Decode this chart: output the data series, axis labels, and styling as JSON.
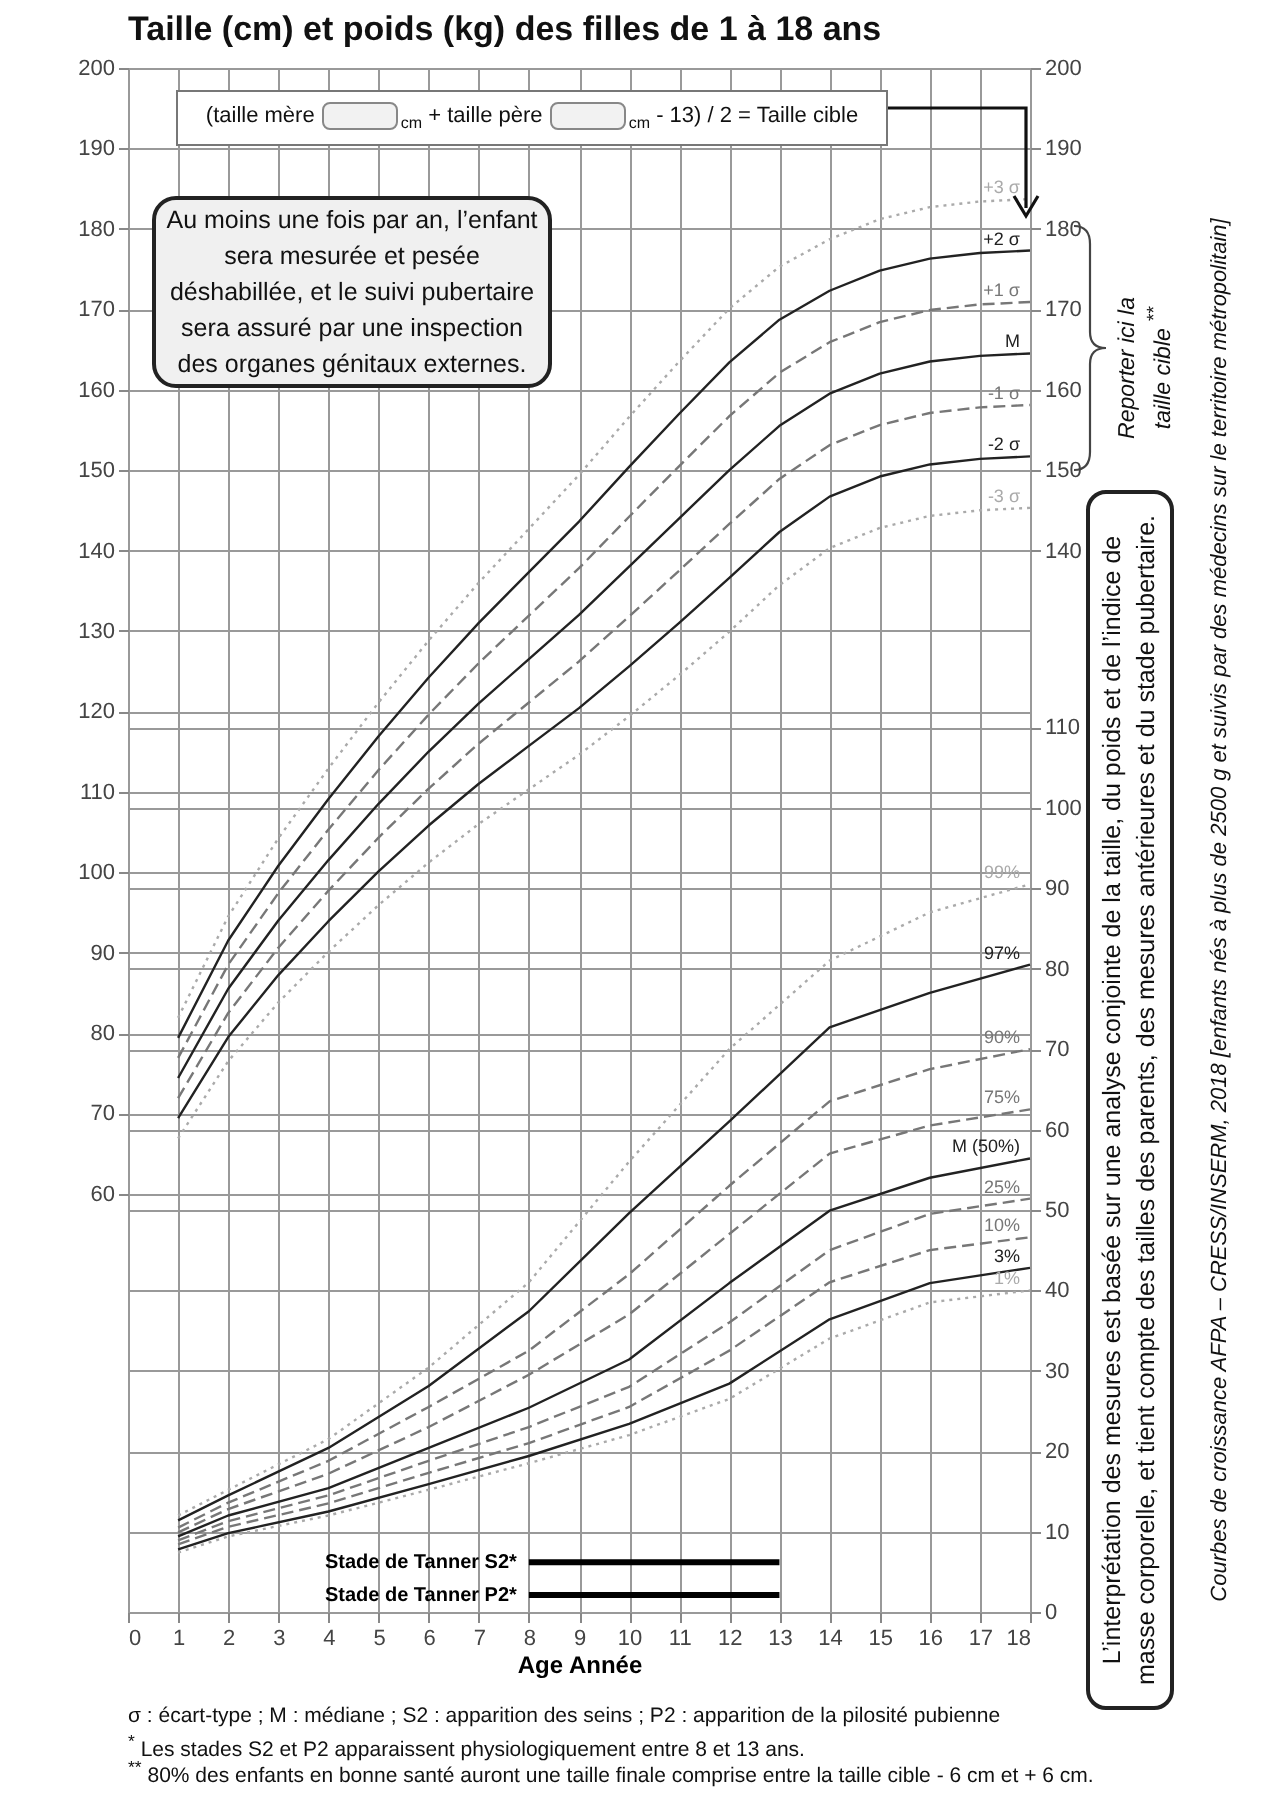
{
  "chart_data": {
    "type": "line",
    "title": "Taille (cm) et poids (kg) des filles de 1 à 18 ans",
    "xlabel": "Age   Année",
    "x": [
      1,
      2,
      3,
      4,
      5,
      6,
      7,
      8,
      9,
      10,
      11,
      12,
      13,
      14,
      15,
      16,
      17,
      18
    ],
    "xlim": [
      0,
      18
    ],
    "xticks": [
      0,
      1,
      2,
      3,
      4,
      5,
      6,
      7,
      8,
      9,
      10,
      11,
      12,
      13,
      14,
      15,
      16,
      17,
      18
    ],
    "ylim": [
      8,
      200
    ],
    "yticks": [
      60,
      70,
      80,
      90,
      100,
      110,
      120,
      130,
      140,
      150,
      160,
      170,
      180,
      190,
      200
    ],
    "y2lim": [
      0,
      192
    ],
    "y2ticks": [
      0,
      10,
      20,
      30,
      40,
      50,
      60,
      70,
      80,
      90,
      100,
      110
    ],
    "y3lim": [
      8,
      200
    ],
    "y3ticks": [
      140,
      150,
      160,
      170,
      180,
      190,
      200
    ],
    "grid": true,
    "series": [
      {
        "name": "+3 σ",
        "color": "#aaaaaa",
        "line_style": "dotted",
        "values": [
          81.9,
          94.5,
          104.2,
          112.9,
          121.1,
          128.8,
          136,
          142.7,
          149.4,
          156.6,
          163.5,
          170.1,
          175.3,
          178.7,
          181.2,
          182.7,
          183.4,
          183.7
        ]
      },
      {
        "name": "+2 σ",
        "color": "#222222",
        "line_style": "solid",
        "values": [
          79.4,
          91.5,
          100.8,
          109.1,
          116.9,
          124.2,
          131,
          137.3,
          143.6,
          150.4,
          157,
          163.4,
          168.7,
          172.3,
          174.8,
          176.3,
          177,
          177.3
        ]
      },
      {
        "name": "+1 σ",
        "color": "#777777",
        "line_style": "dashed",
        "values": [
          76.9,
          88.5,
          97.4,
          105.3,
          112.7,
          119.6,
          126,
          131.9,
          137.8,
          144.2,
          150.5,
          156.7,
          162.1,
          165.9,
          168.4,
          169.9,
          170.6,
          170.9
        ]
      },
      {
        "name": "M",
        "color": "#222222",
        "line_style": "solid",
        "values": [
          74.4,
          85.5,
          94,
          101.5,
          108.5,
          115,
          121,
          126.5,
          132,
          138,
          144,
          150,
          155.5,
          159.5,
          162,
          163.5,
          164.2,
          164.5
        ]
      },
      {
        "name": "-1 σ",
        "color": "#777777",
        "line_style": "dashed",
        "values": [
          71.9,
          82.5,
          90.6,
          97.7,
          104.3,
          110.4,
          116,
          121.1,
          126.2,
          131.8,
          137.5,
          143.3,
          148.9,
          153.1,
          155.6,
          157.1,
          157.8,
          158.1
        ]
      },
      {
        "name": "-2 σ",
        "color": "#222222",
        "line_style": "solid",
        "values": [
          69.4,
          79.5,
          87.2,
          93.9,
          100.1,
          105.8,
          111,
          115.7,
          120.4,
          125.6,
          131,
          136.6,
          142.3,
          146.7,
          149.2,
          150.7,
          151.4,
          151.7
        ]
      },
      {
        "name": "-3 σ",
        "color": "#aaaaaa",
        "line_style": "dotted",
        "values": [
          66.9,
          76.5,
          83.8,
          90.1,
          95.9,
          101.2,
          106,
          110.3,
          114.6,
          119.4,
          124.5,
          129.9,
          135.7,
          140.3,
          142.8,
          144.3,
          145,
          145.3
        ]
      },
      {
        "name": "99%",
        "color": "#aaaaaa",
        "line_style": "dotted",
        "axis": "y2",
        "x": [
          1,
          2,
          4,
          6,
          8,
          10,
          12,
          14,
          16,
          18
        ],
        "values": [
          12,
          15.2,
          21.5,
          30.4,
          41,
          56,
          70,
          81,
          87,
          90.5
        ]
      },
      {
        "name": "97%",
        "color": "#222222",
        "line_style": "solid",
        "axis": "y2",
        "x": [
          1,
          2,
          4,
          6,
          8,
          10,
          12,
          14,
          16,
          18
        ],
        "values": [
          11.4,
          14.5,
          20.4,
          28.1,
          37.4,
          49.6,
          61,
          72.7,
          77,
          80.5
        ]
      },
      {
        "name": "90%",
        "color": "#777777",
        "line_style": "dashed",
        "axis": "y2",
        "x": [
          1,
          2,
          4,
          6,
          8,
          10,
          12,
          14,
          16,
          18
        ],
        "values": [
          10.5,
          13.6,
          18.8,
          25.5,
          32.5,
          42,
          53,
          63.5,
          67.5,
          70
        ]
      },
      {
        "name": "75%",
        "color": "#777777",
        "line_style": "dashed",
        "axis": "y2",
        "x": [
          1,
          2,
          4,
          6,
          8,
          10,
          12,
          14,
          16,
          18
        ],
        "values": [
          9.9,
          12.8,
          17.2,
          23,
          29.5,
          37,
          47,
          57,
          60.5,
          62.5
        ]
      },
      {
        "name": "M (50%)",
        "color": "#222222",
        "line_style": "solid",
        "axis": "y2",
        "x": [
          1,
          2,
          4,
          6,
          8,
          10,
          12,
          14,
          16,
          18
        ],
        "values": [
          9.4,
          12,
          15.4,
          20.4,
          25.4,
          31.4,
          40.9,
          49.9,
          54,
          56.4
        ]
      },
      {
        "name": "25%",
        "color": "#777777",
        "line_style": "dashed",
        "axis": "y2",
        "x": [
          1,
          2,
          4,
          6,
          8,
          10,
          12,
          14,
          16,
          18
        ],
        "values": [
          8.9,
          11.3,
          14.5,
          18.8,
          23,
          28,
          36,
          45,
          49.5,
          51.4
        ]
      },
      {
        "name": "10%",
        "color": "#777777",
        "line_style": "dashed",
        "axis": "y2",
        "x": [
          1,
          2,
          4,
          6,
          8,
          10,
          12,
          14,
          16,
          18
        ],
        "values": [
          8.4,
          10.6,
          13.5,
          17.3,
          21,
          25.5,
          32.5,
          41,
          45,
          46.6
        ]
      },
      {
        "name": "3%",
        "color": "#222222",
        "line_style": "solid",
        "axis": "y2",
        "x": [
          1,
          2,
          4,
          6,
          8,
          10,
          12,
          14,
          16,
          18
        ],
        "values": [
          7.8,
          9.8,
          12.5,
          15.9,
          19.4,
          23.4,
          28.4,
          36.4,
          40.9,
          42.8
        ]
      },
      {
        "name": "1%",
        "color": "#aaaaaa",
        "line_style": "dotted",
        "axis": "y2",
        "x": [
          1,
          2,
          4,
          6,
          8,
          10,
          12,
          14,
          16,
          18
        ],
        "values": [
          7.4,
          9.4,
          12,
          15.2,
          18.5,
          22,
          26.5,
          34,
          38.5,
          40
        ]
      },
      {
        "name": "Stade de Tanner S2*",
        "color": "#000000",
        "line_style": "solid",
        "axis": "y2",
        "x": [
          8,
          13
        ],
        "values": [
          6.2,
          6.2
        ]
      },
      {
        "name": "Stade de Tanner P2*",
        "color": "#000000",
        "line_style": "solid",
        "axis": "y2",
        "x": [
          8,
          13
        ],
        "values": [
          2.1,
          2.1
        ]
      }
    ],
    "annotations": [
      "(taille mère $_{cm}$ + taille père $_{cm}$ - 13) / 2 = Taille cible",
      "Au moins une fois par an, l’enfant sera mesurée et pesée déshabillée, et le suivi pubertaire sera assuré par une inspection des organes génitaux externes.",
      "σ : écart-type ; M : médiane ; S2 : apparition des seins ; P2 : apparition de la pilosité pubienne",
      "$^{*}$ Les stades S2 et P2 apparaissent physiologiquement entre 8 et 13 ans.",
      "$^{**}$ 80% des enfants en bonne santé auront une taille finale comprise entre la taille cible - 6 cm et + 6 cm.",
      "Reporter ici la taille cible $^{**}$",
      "L’interprétation des mesures est basée sur une analyse conjointe de la taille, du poids et de l’indice de masse corporelle, et tient compte des tailles des parents, des mesures antérieures et du stade pubertaire.",
      "Courbes de croissance AFPA – CRESS/INSERM, 2018 [enfants nés à plus de 2500 g et suivis par des médecins sur le territoire métropolitain]"
    ]
  }
}
